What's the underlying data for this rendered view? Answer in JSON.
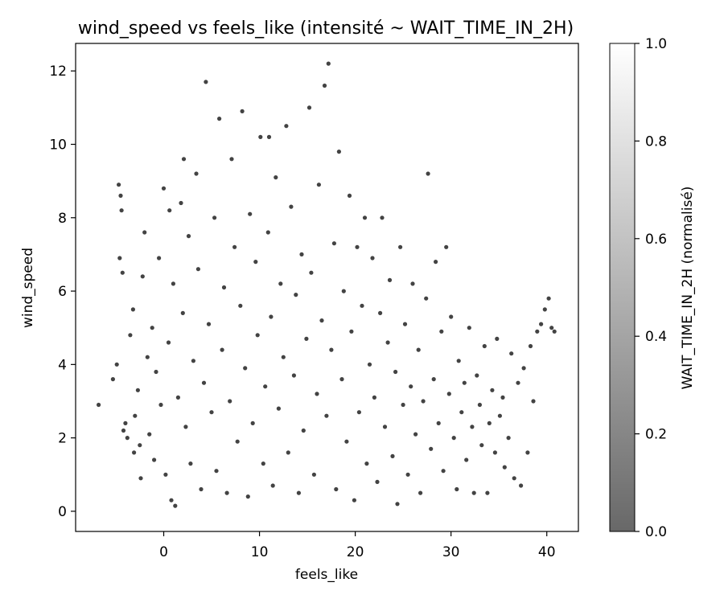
{
  "chart_data": {
    "type": "scatter",
    "title": "wind_speed vs feels_like (intensité ~ WAIT_TIME_IN_2H)",
    "xlabel": "feels_like",
    "ylabel": "wind_speed",
    "xlim": [
      -9.2,
      43.3
    ],
    "ylim": [
      -0.55,
      12.75
    ],
    "xticks": [
      0,
      10,
      20,
      30,
      40
    ],
    "yticks": [
      0,
      2,
      4,
      6,
      8,
      10,
      12
    ],
    "grid": false,
    "colorbar": {
      "label": "WAIT_TIME_IN_2H (normalisé)",
      "range": [
        0.0,
        1.0
      ],
      "ticks": [
        "0.0",
        "0.2",
        "0.4",
        "0.6",
        "0.8",
        "1.0"
      ],
      "colormap": "gray (semi-transparent)"
    },
    "series": [
      {
        "marker_color": "#222222",
        "points": [
          [
            -6.8,
            2.9
          ],
          [
            -5.3,
            3.6
          ],
          [
            -4.9,
            4.0
          ],
          [
            -4.7,
            8.9
          ],
          [
            -4.5,
            8.6
          ],
          [
            -4.4,
            8.2
          ],
          [
            -4.6,
            6.9
          ],
          [
            -4.3,
            6.5
          ],
          [
            -4.0,
            2.4
          ],
          [
            -3.8,
            2.0
          ],
          [
            -3.5,
            4.8
          ],
          [
            -3.2,
            5.5
          ],
          [
            -3.0,
            2.6
          ],
          [
            -2.7,
            3.3
          ],
          [
            -2.5,
            1.8
          ],
          [
            -2.2,
            6.4
          ],
          [
            -2.0,
            7.6
          ],
          [
            -1.7,
            4.2
          ],
          [
            -1.5,
            2.1
          ],
          [
            -1.2,
            5.0
          ],
          [
            -1.0,
            1.4
          ],
          [
            -0.8,
            3.8
          ],
          [
            -0.5,
            6.9
          ],
          [
            -0.3,
            2.9
          ],
          [
            0.0,
            8.8
          ],
          [
            0.2,
            1.0
          ],
          [
            0.5,
            4.6
          ],
          [
            0.8,
            0.3
          ],
          [
            1.0,
            6.2
          ],
          [
            1.2,
            0.15
          ],
          [
            1.5,
            3.1
          ],
          [
            1.8,
            8.4
          ],
          [
            2.0,
            5.4
          ],
          [
            2.3,
            2.3
          ],
          [
            2.6,
            7.5
          ],
          [
            2.8,
            1.3
          ],
          [
            3.1,
            4.1
          ],
          [
            3.4,
            9.2
          ],
          [
            3.6,
            6.6
          ],
          [
            3.9,
            0.6
          ],
          [
            4.2,
            3.5
          ],
          [
            4.4,
            11.7
          ],
          [
            4.7,
            5.1
          ],
          [
            5.0,
            2.7
          ],
          [
            5.3,
            8.0
          ],
          [
            5.5,
            1.1
          ],
          [
            5.8,
            10.7
          ],
          [
            6.1,
            4.4
          ],
          [
            6.3,
            6.1
          ],
          [
            6.6,
            0.5
          ],
          [
            6.9,
            3.0
          ],
          [
            7.1,
            9.6
          ],
          [
            7.4,
            7.2
          ],
          [
            7.7,
            1.9
          ],
          [
            8.0,
            5.6
          ],
          [
            8.2,
            10.9
          ],
          [
            8.5,
            3.9
          ],
          [
            8.8,
            0.4
          ],
          [
            9.0,
            8.1
          ],
          [
            9.3,
            2.4
          ],
          [
            9.6,
            6.8
          ],
          [
            9.8,
            4.8
          ],
          [
            10.1,
            10.2
          ],
          [
            10.4,
            1.3
          ],
          [
            10.6,
            3.4
          ],
          [
            10.9,
            7.6
          ],
          [
            11.2,
            5.3
          ],
          [
            11.4,
            0.7
          ],
          [
            11.7,
            9.1
          ],
          [
            12.0,
            2.8
          ],
          [
            12.2,
            6.2
          ],
          [
            12.5,
            4.2
          ],
          [
            12.8,
            10.5
          ],
          [
            13.0,
            1.6
          ],
          [
            13.3,
            8.3
          ],
          [
            13.6,
            3.7
          ],
          [
            13.8,
            5.9
          ],
          [
            14.1,
            0.5
          ],
          [
            14.4,
            7.0
          ],
          [
            14.6,
            2.2
          ],
          [
            14.9,
            4.7
          ],
          [
            15.2,
            11.0
          ],
          [
            15.4,
            6.5
          ],
          [
            15.7,
            1.0
          ],
          [
            16.0,
            3.2
          ],
          [
            16.2,
            8.9
          ],
          [
            16.5,
            5.2
          ],
          [
            16.8,
            11.6
          ],
          [
            17.0,
            2.6
          ],
          [
            17.2,
            12.2
          ],
          [
            17.5,
            4.4
          ],
          [
            17.8,
            7.3
          ],
          [
            18.0,
            0.6
          ],
          [
            18.3,
            9.8
          ],
          [
            18.6,
            3.6
          ],
          [
            18.8,
            6.0
          ],
          [
            19.1,
            1.9
          ],
          [
            19.4,
            8.6
          ],
          [
            19.6,
            4.9
          ],
          [
            19.9,
            0.3
          ],
          [
            20.2,
            7.2
          ],
          [
            20.4,
            2.7
          ],
          [
            20.7,
            5.6
          ],
          [
            21.0,
            8.0
          ],
          [
            21.2,
            1.3
          ],
          [
            21.5,
            4.0
          ],
          [
            21.8,
            6.9
          ],
          [
            22.0,
            3.1
          ],
          [
            22.3,
            0.8
          ],
          [
            22.6,
            5.4
          ],
          [
            22.8,
            8.0
          ],
          [
            23.1,
            2.3
          ],
          [
            23.4,
            4.6
          ],
          [
            23.6,
            6.3
          ],
          [
            23.9,
            1.5
          ],
          [
            24.2,
            3.8
          ],
          [
            24.4,
            0.2
          ],
          [
            24.7,
            7.2
          ],
          [
            25.0,
            2.9
          ],
          [
            25.2,
            5.1
          ],
          [
            25.5,
            1.0
          ],
          [
            25.8,
            3.4
          ],
          [
            26.0,
            6.2
          ],
          [
            26.3,
            2.1
          ],
          [
            26.6,
            4.4
          ],
          [
            26.8,
            0.5
          ],
          [
            27.1,
            3.0
          ],
          [
            27.4,
            5.8
          ],
          [
            27.6,
            9.2
          ],
          [
            27.9,
            1.7
          ],
          [
            28.2,
            3.6
          ],
          [
            28.4,
            6.8
          ],
          [
            28.7,
            2.4
          ],
          [
            29.0,
            4.9
          ],
          [
            29.2,
            1.1
          ],
          [
            29.5,
            7.2
          ],
          [
            29.8,
            3.2
          ],
          [
            30.0,
            5.3
          ],
          [
            30.3,
            2.0
          ],
          [
            30.6,
            0.6
          ],
          [
            30.8,
            4.1
          ],
          [
            31.1,
            2.7
          ],
          [
            31.4,
            3.5
          ],
          [
            31.6,
            1.4
          ],
          [
            31.9,
            5.0
          ],
          [
            32.2,
            2.3
          ],
          [
            32.4,
            0.5
          ],
          [
            32.7,
            3.7
          ],
          [
            33.0,
            2.9
          ],
          [
            33.2,
            1.8
          ],
          [
            33.5,
            4.5
          ],
          [
            33.8,
            0.5
          ],
          [
            34.0,
            2.4
          ],
          [
            34.3,
            3.3
          ],
          [
            34.6,
            1.6
          ],
          [
            34.8,
            4.7
          ],
          [
            35.1,
            2.6
          ],
          [
            35.4,
            3.1
          ],
          [
            35.6,
            1.2
          ],
          [
            36.0,
            2.0
          ],
          [
            36.3,
            4.3
          ],
          [
            36.6,
            0.9
          ],
          [
            37.0,
            3.5
          ],
          [
            37.3,
            0.7
          ],
          [
            37.6,
            3.9
          ],
          [
            38.0,
            1.6
          ],
          [
            38.3,
            4.5
          ],
          [
            38.6,
            3.0
          ],
          [
            39.0,
            4.9
          ],
          [
            39.4,
            5.1
          ],
          [
            39.8,
            5.5
          ],
          [
            40.2,
            5.8
          ],
          [
            40.5,
            5.0
          ],
          [
            40.8,
            4.9
          ],
          [
            -4.2,
            2.2
          ],
          [
            -3.1,
            1.6
          ],
          [
            -2.4,
            0.9
          ],
          [
            0.6,
            8.2
          ],
          [
            2.1,
            9.6
          ],
          [
            11.0,
            10.2
          ]
        ]
      }
    ]
  }
}
